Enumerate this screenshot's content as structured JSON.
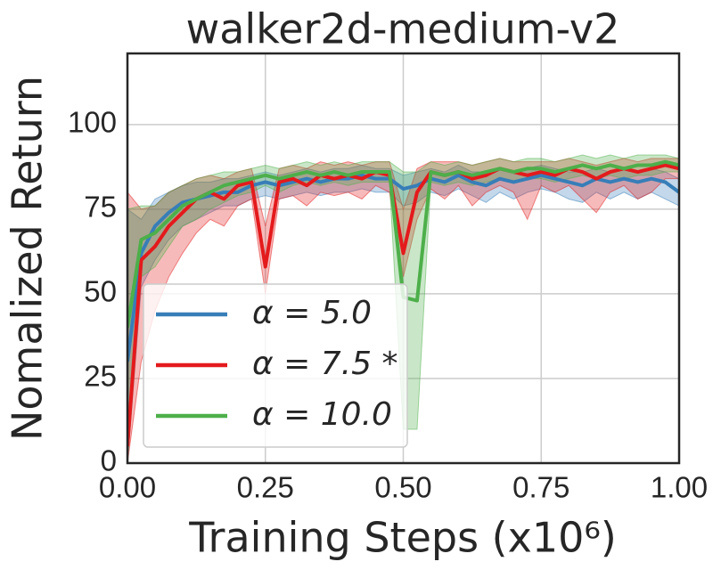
{
  "chart_data": {
    "type": "line",
    "title": "walker2d-medium-v2",
    "xlabel": "Training Steps (x10⁶)",
    "ylabel": "Nomalized Return",
    "x": [
      0,
      0.025,
      0.05,
      0.075,
      0.1,
      0.125,
      0.15,
      0.175,
      0.2,
      0.225,
      0.25,
      0.275,
      0.3,
      0.325,
      0.35,
      0.375,
      0.4,
      0.425,
      0.45,
      0.475,
      0.5,
      0.525,
      0.55,
      0.575,
      0.6,
      0.625,
      0.65,
      0.675,
      0.7,
      0.725,
      0.75,
      0.775,
      0.8,
      0.825,
      0.85,
      0.875,
      0.9,
      0.925,
      0.95,
      0.975,
      1.0
    ],
    "xlim": [
      0,
      1.0
    ],
    "xticks": [
      {
        "value": 0,
        "label": "0.00"
      },
      {
        "value": 0.25,
        "label": "0.25"
      },
      {
        "value": 0.5,
        "label": "0.50"
      },
      {
        "value": 0.75,
        "label": "0.75"
      },
      {
        "value": 1.0,
        "label": "1.00"
      }
    ],
    "ylim": [
      0,
      121
    ],
    "yticks": [
      0,
      25,
      50,
      75,
      100
    ],
    "grid": true,
    "legend": "lower left",
    "series": [
      {
        "name": "α = 5.0",
        "color": "#377eb8",
        "values": [
          30,
          62,
          70,
          74,
          77,
          78,
          79,
          80,
          80,
          82,
          83,
          82,
          83,
          84,
          83,
          84,
          84,
          85,
          84,
          84,
          81,
          82,
          84,
          83,
          85,
          83,
          82,
          84,
          83,
          84,
          85,
          84,
          83,
          82,
          84,
          83,
          84,
          83,
          84,
          83,
          80
        ],
        "lower": [
          0,
          52,
          60,
          66,
          70,
          72,
          74,
          76,
          76,
          78,
          79,
          78,
          79,
          80,
          79,
          80,
          80,
          81,
          80,
          80,
          76,
          77,
          80,
          79,
          81,
          79,
          77,
          80,
          78,
          80,
          81,
          80,
          78,
          77,
          80,
          78,
          80,
          78,
          80,
          78,
          76
        ],
        "upper": [
          75,
          72,
          78,
          80,
          82,
          83,
          83,
          84,
          84,
          85,
          86,
          85,
          86,
          87,
          86,
          87,
          87,
          88,
          87,
          87,
          85,
          86,
          87,
          86,
          88,
          86,
          86,
          87,
          86,
          87,
          88,
          87,
          86,
          86,
          87,
          86,
          87,
          86,
          87,
          86,
          84
        ]
      },
      {
        "name": "α = 7.5 *",
        "color": "#e41a1c",
        "values": [
          5,
          60,
          64,
          70,
          74,
          78,
          80,
          78,
          82,
          83,
          58,
          83,
          84,
          82,
          85,
          84,
          85,
          84,
          86,
          85,
          62,
          80,
          86,
          85,
          86,
          84,
          85,
          87,
          86,
          85,
          86,
          85,
          87,
          86,
          84,
          86,
          87,
          86,
          87,
          88,
          87
        ],
        "lower": [
          0,
          30,
          45,
          55,
          62,
          68,
          72,
          70,
          76,
          78,
          50,
          78,
          79,
          76,
          80,
          79,
          80,
          78,
          82,
          80,
          55,
          72,
          81,
          78,
          82,
          76,
          80,
          82,
          80,
          72,
          82,
          80,
          82,
          78,
          74,
          80,
          82,
          78,
          80,
          84,
          84
        ],
        "upper": [
          80,
          75,
          76,
          80,
          82,
          84,
          85,
          84,
          86,
          87,
          70,
          87,
          88,
          87,
          89,
          88,
          89,
          88,
          89,
          89,
          75,
          87,
          89,
          89,
          89,
          88,
          89,
          90,
          89,
          89,
          89,
          89,
          90,
          89,
          88,
          89,
          90,
          89,
          90,
          90,
          90
        ]
      },
      {
        "name": "α = 10.0",
        "color": "#4daf4a",
        "values": [
          40,
          66,
          68,
          72,
          76,
          78,
          80,
          82,
          83,
          84,
          85,
          84,
          85,
          86,
          85,
          86,
          85,
          86,
          86,
          86,
          49,
          48,
          86,
          85,
          86,
          85,
          86,
          87,
          86,
          87,
          87,
          86,
          87,
          88,
          87,
          88,
          87,
          88,
          88,
          89,
          88
        ],
        "lower": [
          0,
          55,
          58,
          64,
          70,
          72,
          75,
          77,
          79,
          80,
          82,
          80,
          82,
          83,
          82,
          83,
          82,
          83,
          83,
          83,
          10,
          10,
          83,
          82,
          83,
          82,
          83,
          84,
          83,
          84,
          84,
          83,
          84,
          85,
          84,
          85,
          84,
          85,
          85,
          86,
          86
        ],
        "upper": [
          75,
          76,
          76,
          80,
          82,
          84,
          85,
          86,
          86,
          87,
          88,
          87,
          88,
          89,
          88,
          89,
          88,
          89,
          89,
          89,
          86,
          86,
          89,
          88,
          89,
          88,
          89,
          90,
          89,
          90,
          90,
          89,
          90,
          91,
          90,
          91,
          90,
          91,
          91,
          91,
          90
        ]
      }
    ]
  }
}
